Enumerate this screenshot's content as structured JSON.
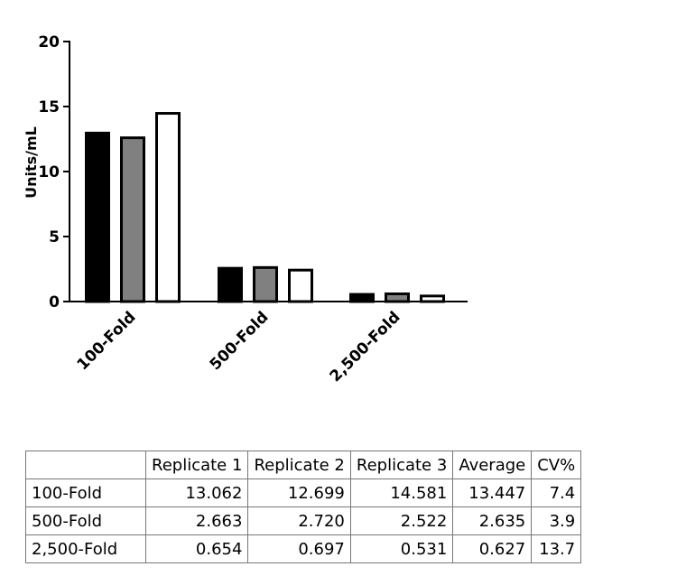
{
  "chart_data": {
    "type": "bar",
    "title": "",
    "xlabel": "",
    "ylabel": "Units/mL",
    "ylim": [
      0,
      20
    ],
    "yticks": [
      "0",
      "5",
      "10",
      "15",
      "20"
    ],
    "categories": [
      "100-Fold",
      "500-Fold",
      "2,500-Fold"
    ],
    "grid": false,
    "legend": "none",
    "series": [
      {
        "values": [
          13.062,
          2.663,
          0.654
        ],
        "color": "#000000"
      },
      {
        "values": [
          12.699,
          2.72,
          0.697
        ],
        "color": "#808080"
      },
      {
        "values": [
          14.581,
          2.522,
          0.531
        ],
        "color": "#ffffff"
      }
    ]
  },
  "table": {
    "headers": [
      "",
      "Replicate 1",
      "Replicate 2",
      "Replicate 3",
      "Average",
      "CV%"
    ],
    "rows": [
      [
        "100-Fold",
        "13.062",
        "12.699",
        "14.581",
        "13.447",
        "7.4"
      ],
      [
        "500-Fold",
        "2.663",
        "2.720",
        "2.522",
        "2.635",
        "3.9"
      ],
      [
        "2,500-Fold",
        "0.654",
        "0.697",
        "0.531",
        "0.627",
        "13.7"
      ]
    ]
  }
}
